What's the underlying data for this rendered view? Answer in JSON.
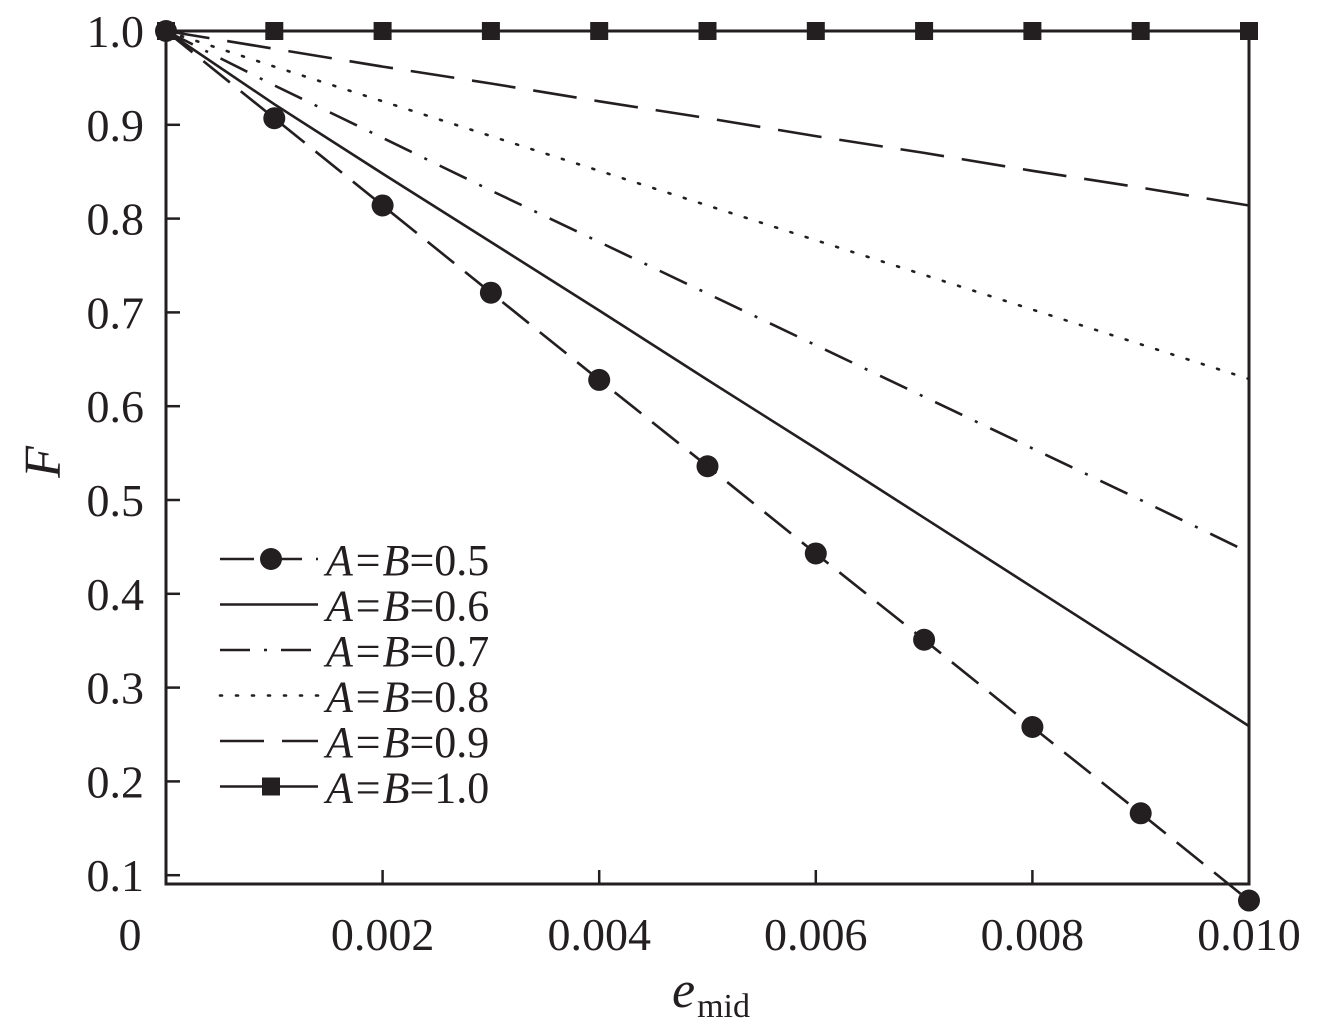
{
  "chart_data": {
    "type": "line",
    "title": "",
    "xlabel": "e",
    "xlabel_sub": "mid",
    "ylabel": "F",
    "xlim": [
      0,
      0.01
    ],
    "ylim": [
      0,
      1.0
    ],
    "x_ticks": [
      0,
      0.002,
      0.004,
      0.006,
      0.008,
      0.01
    ],
    "x_tick_labels": [
      "0",
      "0.002",
      "0.004",
      "0.006",
      "0.008",
      "0.010"
    ],
    "y_ticks": [
      0.1,
      0.2,
      0.3,
      0.4,
      0.5,
      0.6,
      0.7,
      0.8,
      0.9,
      1.0
    ],
    "y_tick_labels": [
      "0.1",
      "0.2",
      "0.3",
      "0.4",
      "0.5",
      "0.6",
      "0.7",
      "0.8",
      "0.9",
      "1.0"
    ],
    "grid": false,
    "legend_position": "bottom-left",
    "x": [
      0,
      0.001,
      0.002,
      0.003,
      0.004,
      0.005,
      0.006,
      0.007,
      0.008,
      0.009,
      0.01
    ],
    "series": [
      {
        "name": "A=B=0.5",
        "label_italic": "A=B",
        "label_value": "=0.5",
        "style": "long-dash",
        "marker": "circle",
        "color": "#231f20",
        "values": [
          1.0,
          0.907,
          0.814,
          0.721,
          0.628,
          0.536,
          0.443,
          0.351,
          0.258,
          0.166,
          0.073
        ]
      },
      {
        "name": "A=B=0.6",
        "label_italic": "A=B",
        "label_value": "=0.6",
        "style": "solid",
        "marker": "none",
        "color": "#231f20",
        "values": [
          1.0,
          0.922,
          0.848,
          0.775,
          0.702,
          0.628,
          0.555,
          0.481,
          0.407,
          0.333,
          0.259
        ]
      },
      {
        "name": "A=B=0.7",
        "label_italic": "A=B",
        "label_value": "=0.7",
        "style": "dash-dot",
        "marker": "none",
        "color": "#231f20",
        "values": [
          1.0,
          0.942,
          0.886,
          0.83,
          0.775,
          0.72,
          0.665,
          0.61,
          0.555,
          0.5,
          0.444
        ]
      },
      {
        "name": "A=B=0.8",
        "label_italic": "A=B",
        "label_value": "=0.8",
        "style": "dotted",
        "marker": "none",
        "color": "#231f20",
        "values": [
          1.0,
          0.962,
          0.925,
          0.888,
          0.851,
          0.814,
          0.777,
          0.74,
          0.703,
          0.666,
          0.629
        ]
      },
      {
        "name": "A=B=0.9",
        "label_italic": "A=B",
        "label_value": "=0.9",
        "style": "dashed",
        "marker": "none",
        "color": "#231f20",
        "values": [
          1.0,
          0.981,
          0.962,
          0.944,
          0.925,
          0.907,
          0.888,
          0.87,
          0.851,
          0.833,
          0.814
        ]
      },
      {
        "name": "A=B=1.0",
        "label_italic": "A=B",
        "label_value": "=1.0",
        "style": "solid",
        "marker": "square",
        "color": "#231f20",
        "values": [
          1.0,
          1.0,
          1.0,
          1.0,
          1.0,
          1.0,
          1.0,
          1.0,
          1.0,
          1.0,
          1.0
        ]
      }
    ]
  }
}
